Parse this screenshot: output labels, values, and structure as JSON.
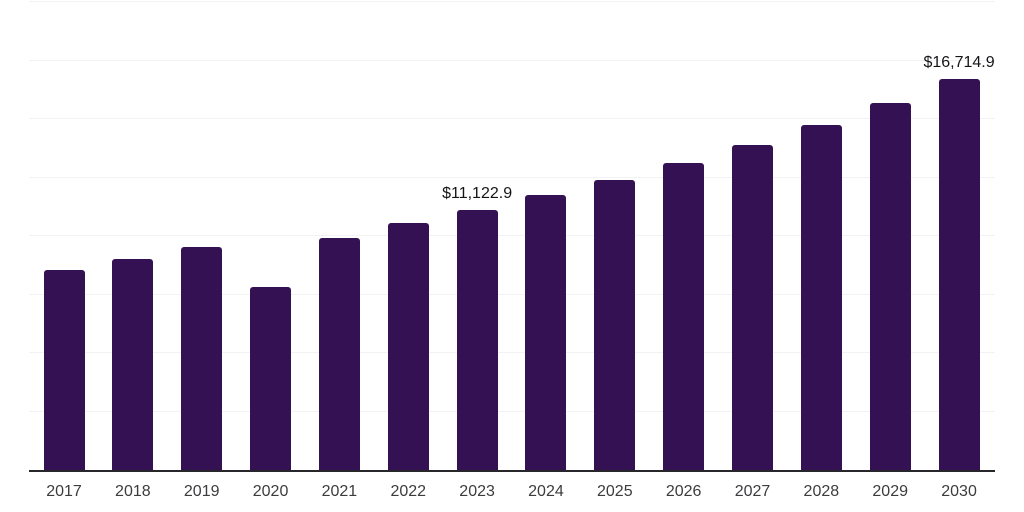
{
  "chart_data": {
    "type": "bar",
    "title": "",
    "xlabel": "",
    "ylabel": "",
    "categories": [
      "2017",
      "2018",
      "2019",
      "2020",
      "2021",
      "2022",
      "2023",
      "2024",
      "2025",
      "2026",
      "2027",
      "2028",
      "2029",
      "2030"
    ],
    "values": [
      8550,
      9020,
      9530,
      7820,
      9915,
      10555,
      11122.9,
      11750,
      12415,
      13120,
      13890,
      14725,
      15685,
      16714.9
    ],
    "data_labels": [
      {
        "index": 6,
        "text": "$11,122.9"
      },
      {
        "index": 13,
        "text": "$16,714.9"
      }
    ],
    "ylim": [
      0,
      20000
    ],
    "gridline_step": 2500,
    "grid": "horizontal",
    "legend": "none",
    "bar_color": "#341152",
    "axis_line_color": "#26262b",
    "gridline_color": "#f2f2f4",
    "data_label_color": "#151518",
    "tick_label_color": "#3c3c3f"
  }
}
